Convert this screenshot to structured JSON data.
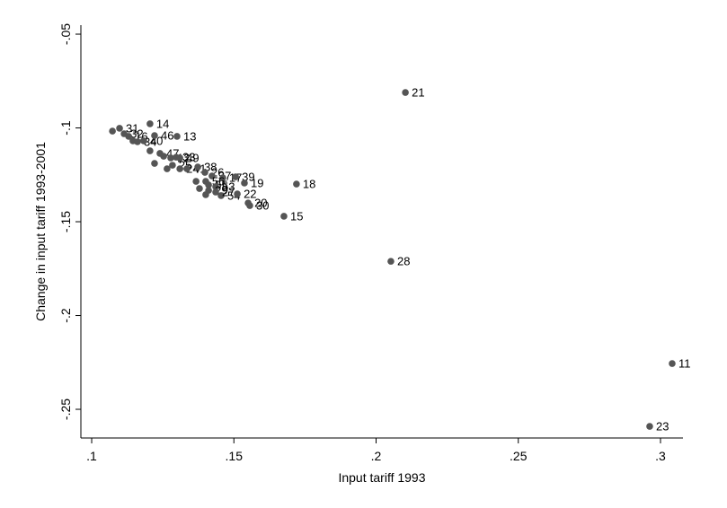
{
  "chart_data": {
    "type": "scatter",
    "x_label": "Input tariff 1993",
    "y_label": "Change in input tariff 1993-2001",
    "xlim": [
      0.0962,
      0.3079
    ],
    "ylim": [
      -0.2653,
      -0.0452
    ],
    "xticks": [
      {
        "value": 0.1,
        "label": ".1"
      },
      {
        "value": 0.15,
        "label": ".15"
      },
      {
        "value": 0.2,
        "label": ".2"
      },
      {
        "value": 0.25,
        "label": ".25"
      },
      {
        "value": 0.3,
        "label": ".3"
      }
    ],
    "yticks": [
      {
        "value": -0.05,
        "label": "-.05"
      },
      {
        "value": -0.1,
        "label": "-.1"
      },
      {
        "value": -0.15,
        "label": "-.15"
      },
      {
        "value": -0.2,
        "label": "-.2"
      },
      {
        "value": -0.25,
        "label": "-.25"
      }
    ],
    "color": "#555555",
    "x": [
      0.1073,
      0.1098,
      0.1114,
      0.113,
      0.1145,
      0.1161,
      0.1183,
      0.1221,
      0.1205,
      0.13,
      0.1205,
      0.124,
      0.1221,
      0.1253,
      0.1278,
      0.1297,
      0.131,
      0.1265,
      0.1284,
      0.131,
      0.1335,
      0.1373,
      0.1398,
      0.1423,
      0.1461,
      0.1506,
      0.1537,
      0.1367,
      0.1401,
      0.1379,
      0.1411,
      0.1436,
      0.1411,
      0.1401,
      0.1455,
      0.1436,
      0.1512,
      0.155,
      0.1556,
      0.172,
      0.1676,
      0.2052,
      0.2103,
      0.3041,
      0.2962
    ],
    "y": [
      -0.1017,
      -0.1002,
      -0.1031,
      -0.1045,
      -0.1069,
      -0.1074,
      -0.1069,
      -0.1041,
      -0.0978,
      -0.1045,
      -0.1122,
      -0.1136,
      -0.1189,
      -0.1151,
      -0.116,
      -0.1156,
      -0.116,
      -0.1218,
      -0.1199,
      -0.1218,
      -0.1218,
      -0.1208,
      -0.1237,
      -0.1256,
      -0.1266,
      -0.1261,
      -0.1294,
      -0.1285,
      -0.1285,
      -0.1323,
      -0.1304,
      -0.1313,
      -0.1333,
      -0.1356,
      -0.1361,
      -0.1342,
      -0.1352,
      -0.14,
      -0.1414,
      -0.1299,
      -0.1471,
      -0.1711,
      -0.0811,
      -0.2256,
      -0.2591
    ],
    "point_labels": [
      null,
      "31",
      "32",
      "16",
      null,
      "34",
      "40",
      "46",
      "14",
      "13",
      null,
      "47",
      null,
      null,
      "12",
      "33",
      "49",
      null,
      "25",
      "24",
      "41",
      "38",
      "26",
      "37",
      "17",
      "39",
      "19",
      null,
      "56",
      null,
      "55",
      "53",
      "29",
      null,
      "54",
      "27",
      "22",
      "20",
      "30",
      "18",
      "15",
      "28",
      "21",
      "11",
      "23"
    ]
  }
}
